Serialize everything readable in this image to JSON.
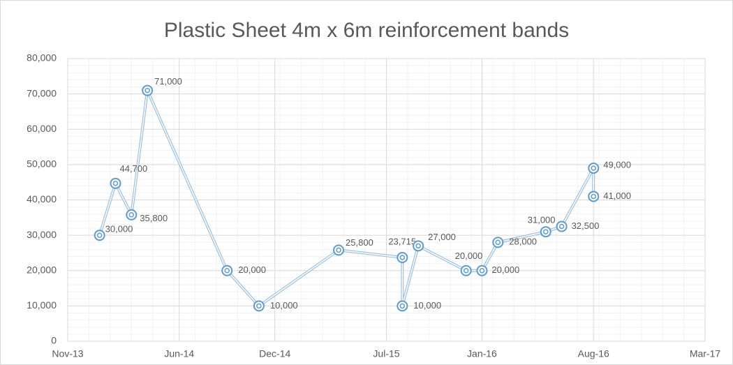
{
  "chart_data": {
    "type": "line",
    "title": "Plastic Sheet 4m x 6m reinforcement bands",
    "x": [
      "2014-01",
      "2014-02",
      "2014-03",
      "2014-04",
      "2014-09",
      "2014-11",
      "2015-04",
      "2015-08",
      "2015-08",
      "2015-09",
      "2015-12",
      "2016-01",
      "2016-02",
      "2016-05",
      "2016-06",
      "2016-08",
      "2016-08"
    ],
    "series": [
      {
        "name": "Plastic Sheet 4m x 6m reinforcement bands",
        "color": "#9dc3e6",
        "values": [
          30000,
          44700,
          35800,
          71000,
          20000,
          10000,
          25800,
          23715,
          10000,
          27000,
          20000,
          20000,
          28000,
          31000,
          32500,
          49000,
          41000
        ],
        "value_labels": [
          "30,000",
          "44,700",
          "35,800",
          "71,000",
          "20,000",
          "10,000",
          "25,800",
          "23,715",
          "10,000",
          "27,000",
          "20,000",
          "20,000",
          "28,000",
          "31,000",
          "32,500",
          "49,000",
          "41,000"
        ]
      }
    ],
    "xlim": [
      "2013-11",
      "2017-03"
    ],
    "xticks": [
      {
        "value": "2013-11",
        "label": "Nov-13"
      },
      {
        "value": "2014-06",
        "label": "Jun-14"
      },
      {
        "value": "2014-12",
        "label": "Dec-14"
      },
      {
        "value": "2015-07",
        "label": "Jul-15"
      },
      {
        "value": "2016-01",
        "label": "Jan-16"
      },
      {
        "value": "2016-08",
        "label": "Aug-16"
      },
      {
        "value": "2017-03",
        "label": "Mar-17"
      }
    ],
    "ylim": [
      0,
      80000
    ],
    "yticks": [
      0,
      {
        "value": 10000,
        "label": "10,000"
      },
      {
        "value": 20000,
        "label": "20,000"
      },
      {
        "value": 30000,
        "label": "30,000"
      },
      {
        "value": 40000,
        "label": "40,000"
      },
      {
        "value": 50000,
        "label": "50,000"
      },
      {
        "value": 60000,
        "label": "60,000"
      },
      {
        "value": 70000,
        "label": "70,000"
      },
      {
        "value": 80000,
        "label": "80,000"
      }
    ],
    "grid": true
  }
}
